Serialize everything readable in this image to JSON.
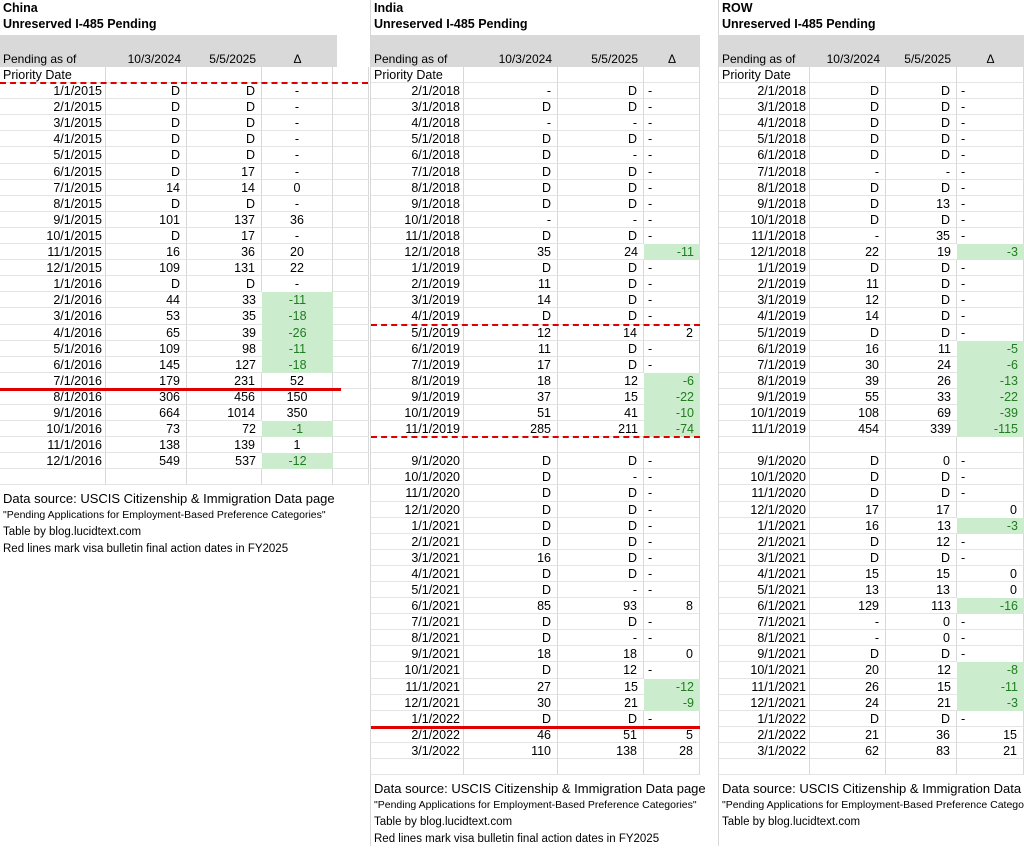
{
  "labels": {
    "pending_as_of": "Pending as of",
    "priority_date": "Priority Date",
    "col_2024": "10/3/2024",
    "col_2025": "5/5/2025",
    "delta": "Δ"
  },
  "colors": {
    "header_band": "#d9d9d9",
    "green_fill": "#cbeccd",
    "green_text": "#1f7d1f",
    "red_line": "#e10000",
    "gridline_vertical": "#d8d8d8",
    "gridline_horizontal": "#e4e4e4"
  },
  "notes": {
    "red_line_meaning": "Red lines mark visa bulletin final action dates in FY2025"
  },
  "tables": [
    {
      "id": "china",
      "title": "China",
      "subtitle": "Unreserved I-485 Pending",
      "delta_align": "center",
      "sections": [
        {
          "rows": [
            [
              "1/1/2015",
              "D",
              "D",
              "-"
            ],
            [
              "2/1/2015",
              "D",
              "D",
              "-"
            ],
            [
              "3/1/2015",
              "D",
              "D",
              "-"
            ],
            [
              "4/1/2015",
              "D",
              "D",
              "-"
            ],
            [
              "5/1/2015",
              "D",
              "D",
              "-"
            ],
            [
              "6/1/2015",
              "D",
              "17",
              "-"
            ],
            [
              "7/1/2015",
              "14",
              "14",
              "0"
            ],
            [
              "8/1/2015",
              "D",
              "D",
              "-"
            ],
            [
              "9/1/2015",
              "101",
              "137",
              "36"
            ],
            [
              "10/1/2015",
              "D",
              "17",
              "-"
            ],
            [
              "11/1/2015",
              "16",
              "36",
              "20"
            ],
            [
              "12/1/2015",
              "109",
              "131",
              "22"
            ],
            [
              "1/1/2016",
              "D",
              "D",
              "-"
            ],
            [
              "2/1/2016",
              "44",
              "33",
              "-11"
            ],
            [
              "3/1/2016",
              "53",
              "35",
              "-18"
            ],
            [
              "4/1/2016",
              "65",
              "39",
              "-26"
            ],
            [
              "5/1/2016",
              "109",
              "98",
              "-11"
            ],
            [
              "6/1/2016",
              "145",
              "127",
              "-18"
            ],
            [
              "7/1/2016",
              "179",
              "231",
              "52"
            ],
            [
              "8/1/2016",
              "306",
              "456",
              "150"
            ],
            [
              "9/1/2016",
              "664",
              "1014",
              "350"
            ],
            [
              "10/1/2016",
              "73",
              "72",
              "-1"
            ],
            [
              "11/1/2016",
              "138",
              "139",
              "1"
            ],
            [
              "12/1/2016",
              "549",
              "537",
              "-12"
            ]
          ],
          "lines": [
            {
              "after": -1,
              "style": "dashed"
            },
            {
              "after": 18,
              "style": "solid"
            }
          ]
        }
      ],
      "footer": [
        "Data source: USCIS Citizenship & Immigration Data page",
        "\"Pending Applications for Employment-Based Preference Categories\"",
        "Table by blog.lucidtext.com",
        "Red lines mark visa bulletin final action dates in FY2025"
      ]
    },
    {
      "id": "india",
      "title": "India",
      "subtitle": "Unreserved I-485 Pending",
      "delta_align": "split",
      "sections": [
        {
          "rows": [
            [
              "2/1/2018",
              "-",
              "D",
              "-"
            ],
            [
              "3/1/2018",
              "D",
              "D",
              "-"
            ],
            [
              "4/1/2018",
              "-",
              "-",
              "-"
            ],
            [
              "5/1/2018",
              "D",
              "D",
              "-"
            ],
            [
              "6/1/2018",
              "D",
              "-",
              "-"
            ],
            [
              "7/1/2018",
              "D",
              "D",
              "-"
            ],
            [
              "8/1/2018",
              "D",
              "D",
              "-"
            ],
            [
              "9/1/2018",
              "D",
              "D",
              "-"
            ],
            [
              "10/1/2018",
              "-",
              "-",
              "-"
            ],
            [
              "11/1/2018",
              "D",
              "D",
              "-"
            ],
            [
              "12/1/2018",
              "35",
              "24",
              "-11"
            ],
            [
              "1/1/2019",
              "D",
              "D",
              "-"
            ],
            [
              "2/1/2019",
              "11",
              "D",
              "-"
            ],
            [
              "3/1/2019",
              "14",
              "D",
              "-"
            ],
            [
              "4/1/2019",
              "D",
              "D",
              "-"
            ],
            [
              "5/1/2019",
              "12",
              "14",
              "2"
            ],
            [
              "6/1/2019",
              "11",
              "D",
              "-"
            ],
            [
              "7/1/2019",
              "17",
              "D",
              "-"
            ],
            [
              "8/1/2019",
              "18",
              "12",
              "-6"
            ],
            [
              "9/1/2019",
              "37",
              "15",
              "-22"
            ],
            [
              "10/1/2019",
              "51",
              "41",
              "-10"
            ],
            [
              "11/1/2019",
              "285",
              "211",
              "-74"
            ]
          ],
          "lines": [
            {
              "after": 14,
              "style": "dashed"
            },
            {
              "after": 21,
              "style": "dashed"
            }
          ]
        },
        {
          "rows": [
            [
              "9/1/2020",
              "D",
              "D",
              "-"
            ],
            [
              "10/1/2020",
              "D",
              "-",
              "-"
            ],
            [
              "11/1/2020",
              "D",
              "D",
              "-"
            ],
            [
              "12/1/2020",
              "D",
              "D",
              "-"
            ],
            [
              "1/1/2021",
              "D",
              "D",
              "-"
            ],
            [
              "2/1/2021",
              "D",
              "D",
              "-"
            ],
            [
              "3/1/2021",
              "16",
              "D",
              "-"
            ],
            [
              "4/1/2021",
              "D",
              "D",
              "-"
            ],
            [
              "5/1/2021",
              "D",
              "-",
              "-"
            ],
            [
              "6/1/2021",
              "85",
              "93",
              "8"
            ],
            [
              "7/1/2021",
              "D",
              "D",
              "-"
            ],
            [
              "8/1/2021",
              "D",
              "-",
              "-"
            ],
            [
              "9/1/2021",
              "18",
              "18",
              "0"
            ],
            [
              "10/1/2021",
              "D",
              "12",
              "-"
            ],
            [
              "11/1/2021",
              "27",
              "15",
              "-12"
            ],
            [
              "12/1/2021",
              "30",
              "21",
              "-9"
            ],
            [
              "1/1/2022",
              "D",
              "D",
              "-"
            ],
            [
              "2/1/2022",
              "46",
              "51",
              "5"
            ],
            [
              "3/1/2022",
              "110",
              "138",
              "28"
            ]
          ],
          "lines": [
            {
              "after": 16,
              "style": "solid"
            }
          ]
        }
      ],
      "footer": [
        "Data source: USCIS Citizenship & Immigration Data page",
        "\"Pending Applications for Employment-Based Preference Categories\"",
        "Table by blog.lucidtext.com",
        "Red lines mark visa bulletin final action dates in FY2025"
      ]
    },
    {
      "id": "row",
      "title": "ROW",
      "subtitle": "Unreserved I-485 Pending",
      "delta_align": "split",
      "sections": [
        {
          "rows": [
            [
              "2/1/2018",
              "D",
              "D",
              "-"
            ],
            [
              "3/1/2018",
              "D",
              "D",
              "-"
            ],
            [
              "4/1/2018",
              "D",
              "D",
              "-"
            ],
            [
              "5/1/2018",
              "D",
              "D",
              "-"
            ],
            [
              "6/1/2018",
              "D",
              "D",
              "-"
            ],
            [
              "7/1/2018",
              "-",
              "-",
              "-"
            ],
            [
              "8/1/2018",
              "D",
              "D",
              "-"
            ],
            [
              "9/1/2018",
              "D",
              "13",
              "-"
            ],
            [
              "10/1/2018",
              "D",
              "D",
              "-"
            ],
            [
              "11/1/2018",
              "-",
              "35",
              "-"
            ],
            [
              "12/1/2018",
              "22",
              "19",
              "-3"
            ],
            [
              "1/1/2019",
              "D",
              "D",
              "-"
            ],
            [
              "2/1/2019",
              "11",
              "D",
              "-"
            ],
            [
              "3/1/2019",
              "12",
              "D",
              "-"
            ],
            [
              "4/1/2019",
              "14",
              "D",
              "-"
            ],
            [
              "5/1/2019",
              "D",
              "D",
              "-"
            ],
            [
              "6/1/2019",
              "16",
              "11",
              "-5"
            ],
            [
              "7/1/2019",
              "30",
              "24",
              "-6"
            ],
            [
              "8/1/2019",
              "39",
              "26",
              "-13"
            ],
            [
              "9/1/2019",
              "55",
              "33",
              "-22"
            ],
            [
              "10/1/2019",
              "108",
              "69",
              "-39"
            ],
            [
              "11/1/2019",
              "454",
              "339",
              "-115"
            ]
          ],
          "lines": []
        },
        {
          "rows": [
            [
              "9/1/2020",
              "D",
              "0",
              "-"
            ],
            [
              "10/1/2020",
              "D",
              "D",
              "-"
            ],
            [
              "11/1/2020",
              "D",
              "D",
              "-"
            ],
            [
              "12/1/2020",
              "17",
              "17",
              "0"
            ],
            [
              "1/1/2021",
              "16",
              "13",
              "-3"
            ],
            [
              "2/1/2021",
              "D",
              "12",
              "-"
            ],
            [
              "3/1/2021",
              "D",
              "D",
              "-"
            ],
            [
              "4/1/2021",
              "15",
              "15",
              "0"
            ],
            [
              "5/1/2021",
              "13",
              "13",
              "0"
            ],
            [
              "6/1/2021",
              "129",
              "113",
              "-16"
            ],
            [
              "7/1/2021",
              "-",
              "0",
              "-"
            ],
            [
              "8/1/2021",
              "-",
              "0",
              "-"
            ],
            [
              "9/1/2021",
              "D",
              "D",
              "-"
            ],
            [
              "10/1/2021",
              "20",
              "12",
              "-8"
            ],
            [
              "11/1/2021",
              "26",
              "15",
              "-11"
            ],
            [
              "12/1/2021",
              "24",
              "21",
              "-3"
            ],
            [
              "1/1/2022",
              "D",
              "D",
              "-"
            ],
            [
              "2/1/2022",
              "21",
              "36",
              "15"
            ],
            [
              "3/1/2022",
              "62",
              "83",
              "21"
            ]
          ],
          "lines": []
        }
      ],
      "footer": [
        "Data source: USCIS Citizenship & Immigration Data page",
        "\"Pending Applications for Employment-Based Preference Categories\"",
        "Table by blog.lucidtext.com"
      ]
    }
  ]
}
